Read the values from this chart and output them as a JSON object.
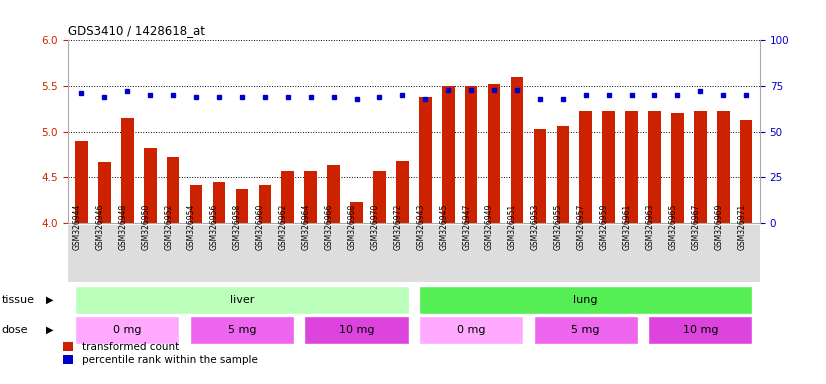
{
  "title": "GDS3410 / 1428618_at",
  "samples": [
    "GSM326944",
    "GSM326946",
    "GSM326948",
    "GSM326950",
    "GSM326952",
    "GSM326954",
    "GSM326956",
    "GSM326958",
    "GSM326960",
    "GSM326962",
    "GSM326964",
    "GSM326966",
    "GSM326968",
    "GSM326970",
    "GSM326972",
    "GSM326943",
    "GSM326945",
    "GSM326947",
    "GSM326949",
    "GSM326951",
    "GSM326953",
    "GSM326955",
    "GSM326957",
    "GSM326959",
    "GSM326961",
    "GSM326963",
    "GSM326965",
    "GSM326967",
    "GSM326969",
    "GSM326971"
  ],
  "bar_values": [
    4.9,
    4.67,
    5.15,
    4.82,
    4.72,
    4.41,
    4.45,
    4.37,
    4.41,
    4.57,
    4.57,
    4.63,
    4.23,
    4.57,
    4.68,
    5.38,
    5.5,
    5.5,
    5.52,
    5.6,
    5.03,
    5.06,
    5.23,
    5.23,
    5.23,
    5.23,
    5.2,
    5.23,
    5.23,
    5.13
  ],
  "percentile_values": [
    71,
    69,
    72,
    70,
    70,
    69,
    69,
    69,
    69,
    69,
    69,
    69,
    68,
    69,
    70,
    68,
    73,
    73,
    73,
    73,
    68,
    68,
    70,
    70,
    70,
    70,
    70,
    72,
    70,
    70
  ],
  "ylim_left": [
    4.0,
    6.0
  ],
  "ylim_right": [
    0,
    100
  ],
  "yticks_left": [
    4.0,
    4.5,
    5.0,
    5.5,
    6.0
  ],
  "yticks_right": [
    0,
    25,
    50,
    75,
    100
  ],
  "bar_color": "#cc2200",
  "dot_color": "#0000cc",
  "tissue_groups": [
    {
      "label": "liver",
      "start": 0,
      "end": 15,
      "color": "#bbffbb"
    },
    {
      "label": "lung",
      "start": 15,
      "end": 30,
      "color": "#55ee55"
    }
  ],
  "dose_groups": [
    {
      "label": "0 mg",
      "start": 0,
      "end": 5,
      "color": "#ffaaff"
    },
    {
      "label": "5 mg",
      "start": 5,
      "end": 10,
      "color": "#ee66ee"
    },
    {
      "label": "10 mg",
      "start": 10,
      "end": 15,
      "color": "#dd44dd"
    },
    {
      "label": "0 mg",
      "start": 15,
      "end": 20,
      "color": "#ffaaff"
    },
    {
      "label": "5 mg",
      "start": 20,
      "end": 25,
      "color": "#ee66ee"
    },
    {
      "label": "10 mg",
      "start": 25,
      "end": 30,
      "color": "#dd44dd"
    }
  ],
  "legend_items": [
    {
      "label": "transformed count",
      "color": "#cc2200"
    },
    {
      "label": "percentile rank within the sample",
      "color": "#0000cc"
    }
  ],
  "left_tick_color": "#cc2200",
  "right_tick_color": "#0000cc",
  "tissue_row_label": "tissue",
  "dose_row_label": "dose",
  "xtick_bg_color": "#dddddd",
  "plot_bg_color": "#ffffff"
}
